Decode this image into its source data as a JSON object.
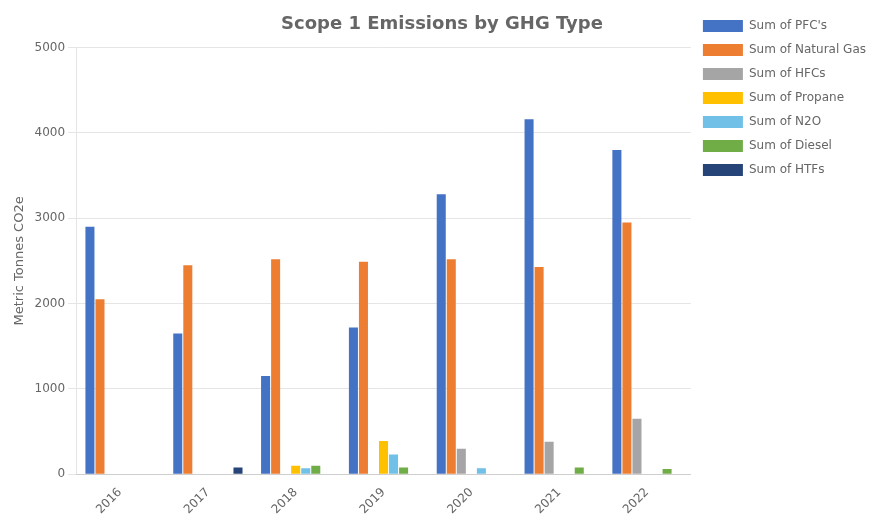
{
  "chart_data": {
    "type": "bar",
    "title": "Scope 1 Emissions by GHG Type",
    "ylabel": "Metric Tonnes CO2e",
    "categories": [
      "2016",
      "2017",
      "2018",
      "2019",
      "2020",
      "2021",
      "2022"
    ],
    "series": [
      {
        "name": "Sum of PFC's",
        "color": "#4472C4",
        "values": [
          2900,
          1650,
          1150,
          1720,
          3280,
          4160,
          3800
        ]
      },
      {
        "name": "Sum of Natural Gas",
        "color": "#ED7D31",
        "values": [
          2050,
          2450,
          2520,
          2490,
          2520,
          2430,
          2950
        ]
      },
      {
        "name": "Sum of HFCs",
        "color": "#A5A5A5",
        "values": [
          0,
          0,
          0,
          0,
          300,
          380,
          650
        ]
      },
      {
        "name": "Sum of Propane",
        "color": "#FFC000",
        "values": [
          0,
          0,
          100,
          390,
          0,
          0,
          0
        ]
      },
      {
        "name": "Sum of N2O",
        "color": "#70C0E8",
        "values": [
          0,
          0,
          70,
          230,
          70,
          0,
          0
        ]
      },
      {
        "name": "Sum of Diesel",
        "color": "#70AD47",
        "values": [
          0,
          0,
          100,
          80,
          0,
          80,
          60
        ]
      },
      {
        "name": "Sum of HTFs",
        "color": "#264478",
        "values": [
          0,
          80,
          0,
          0,
          0,
          0,
          0
        ]
      }
    ],
    "ylim": [
      0,
      5000
    ],
    "yticks": [
      0,
      1000,
      2000,
      3000,
      4000,
      5000
    ],
    "grid": true,
    "legend": "right"
  }
}
